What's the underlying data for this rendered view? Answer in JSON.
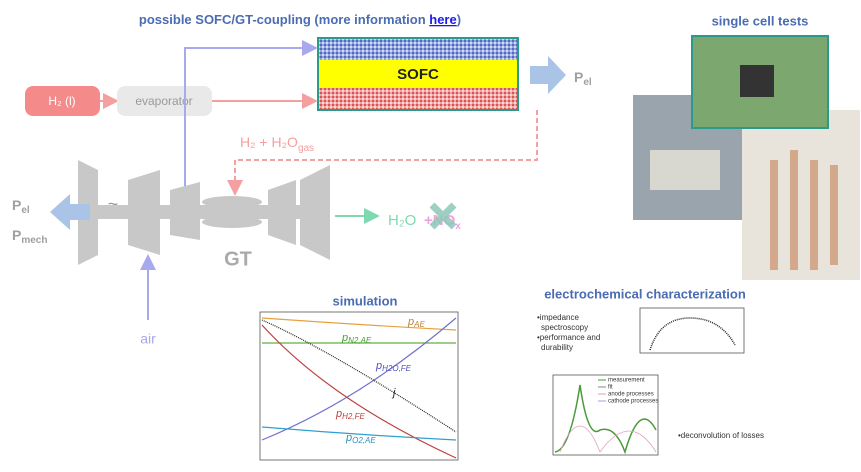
{
  "header": {
    "title_prefix": "possible SOFC/GT-coupling (more information ",
    "link": "here",
    "title_suffix": ")"
  },
  "nodes": {
    "h2_liquid": "H₂ (l)",
    "evaporator": "evaporator",
    "sofc": "SOFC",
    "p_el_out": {
      "main": "P",
      "sub": "el"
    },
    "fuel_exhaust": {
      "main": "H₂ + H₂O",
      "sub": "gas"
    },
    "p_el_gt": {
      "main": "P",
      "sub": "el"
    },
    "p_mech_gt": {
      "main": "P",
      "sub": "mech"
    },
    "generator": "~",
    "gt": "GT",
    "exhaust_h2o": "H₂O",
    "exhaust_nox": {
      "main": "+NO",
      "sub": "x"
    },
    "air": "air"
  },
  "panels": {
    "single_cell": {
      "title": "single cell tests"
    },
    "simulation": {
      "title": "simulation",
      "curve_labels": [
        {
          "main": "p",
          "sub": "AE"
        },
        {
          "main": "p",
          "sub": "N2,AE"
        },
        {
          "main": "p",
          "sub": "H2O,FE"
        },
        {
          "main": "j",
          "sub": ""
        },
        {
          "main": "p",
          "sub": "H2,FE"
        },
        {
          "main": "p",
          "sub": "O2,AE"
        }
      ]
    },
    "electrochemical": {
      "title": "electrochemical characterization",
      "bullets": [
        "•impedance",
        "spectroscopy",
        "•performance and",
        "durability"
      ],
      "legend": [
        "measurement",
        "fit",
        "anode processes",
        "cathode processes"
      ],
      "note": "•deconvolution of losses"
    }
  }
}
